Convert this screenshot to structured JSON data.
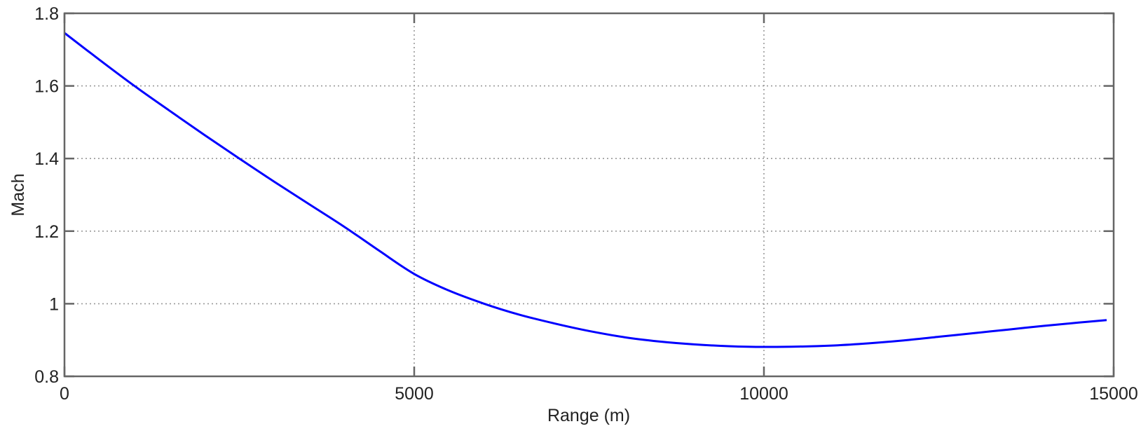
{
  "chart_data": {
    "type": "line",
    "title": "",
    "xlabel": "Range (m)",
    "ylabel": "Mach",
    "xlim": [
      0,
      15000
    ],
    "ylim": [
      0.8,
      1.8
    ],
    "x_ticks": [
      0,
      5000,
      10000,
      15000
    ],
    "x_tick_labels": [
      "0",
      "5000",
      "10000",
      "15000"
    ],
    "y_ticks": [
      0.8,
      1.0,
      1.2,
      1.4,
      1.6,
      1.8
    ],
    "y_tick_labels": [
      "0.8",
      "1",
      "1.2",
      "1.4",
      "1.6",
      "1.8"
    ],
    "grid": true,
    "legend": null,
    "series": [
      {
        "name": "Mach",
        "color": "#0000ff",
        "x": [
          0,
          500,
          1000,
          1500,
          2000,
          2500,
          3000,
          3500,
          4000,
          4500,
          5000,
          5500,
          6000,
          6500,
          7000,
          7500,
          8000,
          8500,
          9000,
          9500,
          10000,
          10500,
          11000,
          11500,
          12000,
          12500,
          13000,
          13500,
          14000,
          14500,
          14900
        ],
        "values": [
          1.746,
          1.672,
          1.6,
          1.532,
          1.465,
          1.4,
          1.336,
          1.274,
          1.212,
          1.146,
          1.082,
          1.036,
          1.0,
          0.97,
          0.946,
          0.925,
          0.908,
          0.896,
          0.888,
          0.883,
          0.881,
          0.882,
          0.885,
          0.891,
          0.899,
          0.909,
          0.919,
          0.929,
          0.939,
          0.948,
          0.955
        ]
      }
    ]
  },
  "colors": {
    "axes": "#666666",
    "grid": "#999999",
    "line": "#0000ff",
    "background": "#ffffff"
  }
}
